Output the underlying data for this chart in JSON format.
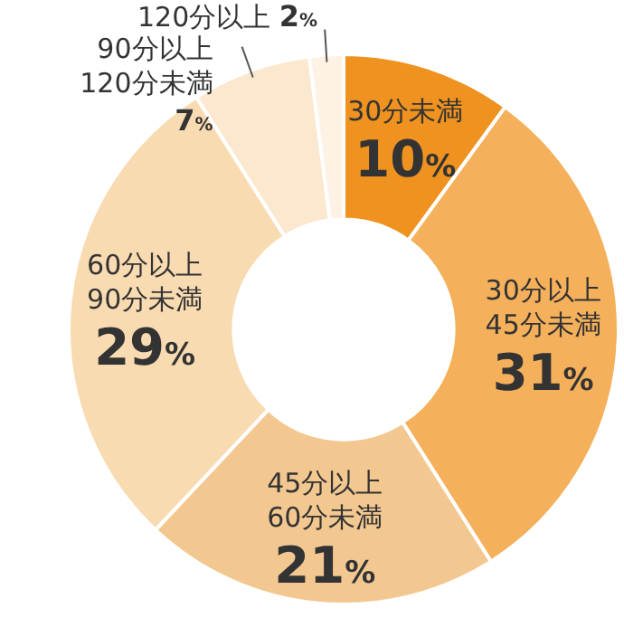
{
  "chart_data": {
    "type": "donut",
    "categories": [
      "30分未満",
      "30分以上\n45分未満",
      "45分以上\n60分未満",
      "60分以上\n90分未満",
      "90分以上\n120分未満",
      "120分以上"
    ],
    "values": [
      10,
      31,
      21,
      29,
      7,
      2
    ],
    "value_labels": [
      "10%",
      "31%",
      "21%",
      "29%",
      "7%",
      "2%"
    ],
    "colors": [
      "#ef921f",
      "#f5b05b",
      "#f3c890",
      "#f9dbb2",
      "#fce8cf",
      "#fdf2e4"
    ]
  }
}
